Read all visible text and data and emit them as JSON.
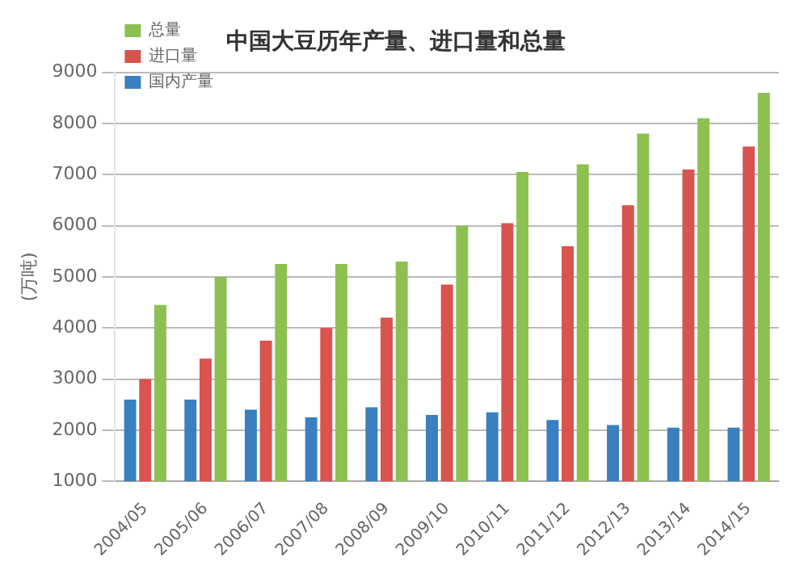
{
  "chart_data": {
    "type": "bar",
    "title": "中国大豆历年产量、进口量和总量",
    "ylabel": "(万吨)",
    "categories": [
      "2004/05",
      "2005/06",
      "2006/07",
      "2007/08",
      "2008/09",
      "2009/10",
      "2010/11",
      "2011/12",
      "2012/13",
      "2013/14",
      "2014/15"
    ],
    "series": [
      {
        "name": "国内产量",
        "color": "#3a7fc0",
        "values": [
          2600,
          2600,
          2400,
          2250,
          2450,
          2300,
          2350,
          2200,
          2100,
          2050,
          2050
        ]
      },
      {
        "name": "进口量",
        "color": "#d9534f",
        "values": [
          3000,
          3400,
          3750,
          4000,
          4200,
          4850,
          6050,
          5600,
          6400,
          7100,
          7550
        ]
      },
      {
        "name": "总量",
        "color": "#8cc152",
        "values": [
          4450,
          5000,
          5250,
          5250,
          5300,
          6000,
          7050,
          7200,
          7800,
          8100,
          8600
        ]
      }
    ],
    "ylim": [
      1000,
      9000
    ],
    "yticks": [
      1000,
      2000,
      3000,
      4000,
      5000,
      6000,
      7000,
      8000,
      9000
    ],
    "grid": "y",
    "legend": "top left"
  }
}
